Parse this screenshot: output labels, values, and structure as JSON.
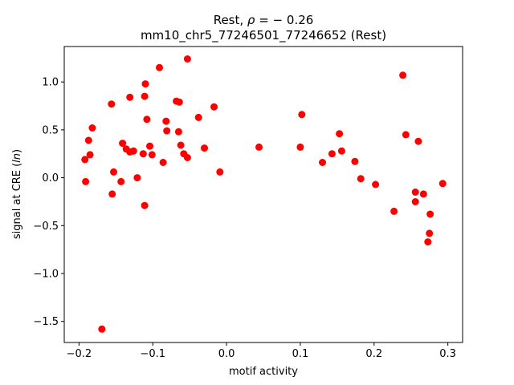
{
  "chart_data": {
    "type": "scatter",
    "title_line1": "Rest, ",
    "title_rho_symbol": "ρ",
    "title_rho_value": " = − 0.26",
    "title_line2": "mm10_chr5_77246501_77246652 (Rest)",
    "xlabel": "motif activity",
    "ylabel_prefix": "signal at CRE (",
    "ylabel_ln": "ln",
    "ylabel_suffix": ")",
    "xlim": [
      -0.22,
      0.32
    ],
    "ylim": [
      -1.72,
      1.37
    ],
    "xticks": [
      -0.2,
      -0.1,
      0.0,
      0.1,
      0.2,
      0.3
    ],
    "xtick_labels": [
      "−0.2",
      "−0.1",
      "0.0",
      "0.1",
      "0.2",
      "0.3"
    ],
    "yticks": [
      -1.5,
      -1.0,
      -0.5,
      0.0,
      0.5,
      1.0
    ],
    "ytick_labels": [
      "−1.5",
      "−1.0",
      "−0.5",
      "0.0",
      "0.5",
      "1.0"
    ],
    "grid": false,
    "marker_color": "#ff0000",
    "points": [
      {
        "x": -0.053,
        "y": 1.24
      },
      {
        "x": -0.091,
        "y": 1.15
      },
      {
        "x": -0.11,
        "y": 0.98
      },
      {
        "x": -0.111,
        "y": 0.85
      },
      {
        "x": -0.131,
        "y": 0.84
      },
      {
        "x": -0.068,
        "y": 0.8
      },
      {
        "x": -0.064,
        "y": 0.79
      },
      {
        "x": -0.156,
        "y": 0.77
      },
      {
        "x": -0.017,
        "y": 0.74
      },
      {
        "x": -0.038,
        "y": 0.63
      },
      {
        "x": -0.108,
        "y": 0.61
      },
      {
        "x": -0.082,
        "y": 0.59
      },
      {
        "x": -0.182,
        "y": 0.52
      },
      {
        "x": -0.081,
        "y": 0.49
      },
      {
        "x": -0.065,
        "y": 0.48
      },
      {
        "x": -0.187,
        "y": 0.39
      },
      {
        "x": -0.141,
        "y": 0.36
      },
      {
        "x": -0.062,
        "y": 0.34
      },
      {
        "x": -0.104,
        "y": 0.33
      },
      {
        "x": -0.136,
        "y": 0.3
      },
      {
        "x": -0.03,
        "y": 0.31
      },
      {
        "x": -0.131,
        "y": 0.27
      },
      {
        "x": -0.126,
        "y": 0.28
      },
      {
        "x": -0.185,
        "y": 0.24
      },
      {
        "x": -0.113,
        "y": 0.25
      },
      {
        "x": -0.101,
        "y": 0.24
      },
      {
        "x": -0.058,
        "y": 0.25
      },
      {
        "x": -0.053,
        "y": 0.21
      },
      {
        "x": -0.192,
        "y": 0.19
      },
      {
        "x": -0.086,
        "y": 0.16
      },
      {
        "x": -0.153,
        "y": 0.06
      },
      {
        "x": -0.009,
        "y": 0.06
      },
      {
        "x": -0.121,
        "y": 0.0
      },
      {
        "x": -0.191,
        "y": -0.04
      },
      {
        "x": -0.143,
        "y": -0.04
      },
      {
        "x": -0.155,
        "y": -0.17
      },
      {
        "x": -0.111,
        "y": -0.29
      },
      {
        "x": -0.169,
        "y": -1.58
      },
      {
        "x": 0.044,
        "y": 0.32
      },
      {
        "x": 0.1,
        "y": 0.32
      },
      {
        "x": 0.102,
        "y": 0.66
      },
      {
        "x": 0.13,
        "y": 0.16
      },
      {
        "x": 0.143,
        "y": 0.25
      },
      {
        "x": 0.153,
        "y": 0.46
      },
      {
        "x": 0.156,
        "y": 0.28
      },
      {
        "x": 0.174,
        "y": 0.17
      },
      {
        "x": 0.182,
        "y": -0.01
      },
      {
        "x": 0.202,
        "y": -0.07
      },
      {
        "x": 0.227,
        "y": -0.35
      },
      {
        "x": 0.239,
        "y": 1.07
      },
      {
        "x": 0.243,
        "y": 0.45
      },
      {
        "x": 0.256,
        "y": -0.15
      },
      {
        "x": 0.256,
        "y": -0.25
      },
      {
        "x": 0.26,
        "y": 0.38
      },
      {
        "x": 0.267,
        "y": -0.17
      },
      {
        "x": 0.273,
        "y": -0.67
      },
      {
        "x": 0.275,
        "y": -0.58
      },
      {
        "x": 0.276,
        "y": -0.38
      },
      {
        "x": 0.293,
        "y": -0.06
      }
    ]
  }
}
